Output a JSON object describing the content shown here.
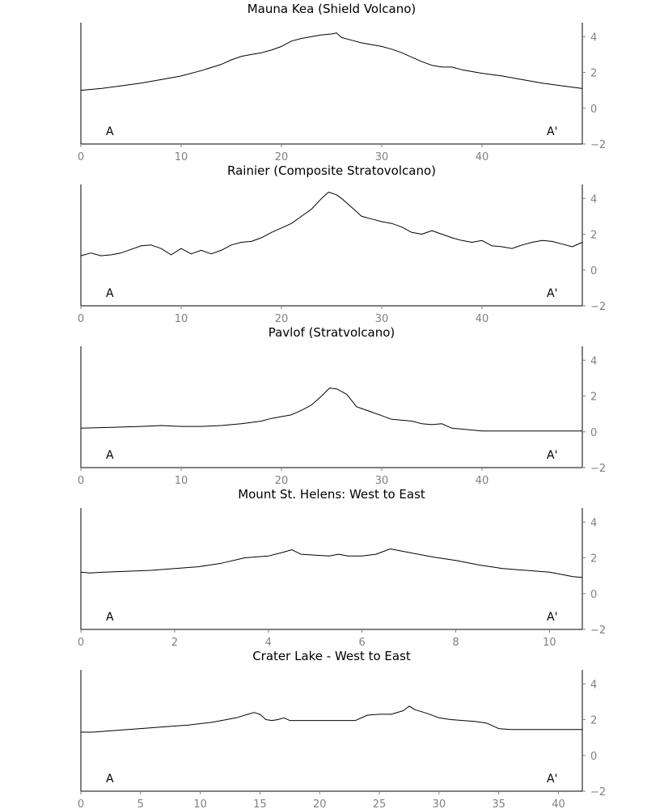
{
  "chart_data": [
    {
      "type": "line",
      "title": "Mauna Kea (Shield Volcano)",
      "label_start": "A",
      "label_end": "A'",
      "xlim": [
        0,
        50
      ],
      "ylim": [
        -2,
        4.6
      ],
      "xticks": [
        0,
        10,
        20,
        30,
        40
      ],
      "yticks": [
        -2,
        0,
        2,
        4
      ],
      "x": [
        0,
        2,
        4,
        6,
        8,
        10,
        12,
        14,
        15,
        16,
        17,
        18,
        19,
        20,
        21,
        22,
        23,
        24,
        25,
        25.5,
        26,
        27,
        28,
        29,
        30,
        31,
        32,
        33,
        34,
        35,
        36,
        37,
        38,
        40,
        42,
        44,
        46,
        48,
        50
      ],
      "y": [
        1.0,
        1.1,
        1.25,
        1.4,
        1.6,
        1.8,
        2.1,
        2.45,
        2.7,
        2.9,
        3.0,
        3.1,
        3.25,
        3.45,
        3.75,
        3.9,
        4.0,
        4.1,
        4.15,
        4.2,
        3.95,
        3.8,
        3.65,
        3.55,
        3.45,
        3.3,
        3.1,
        2.85,
        2.6,
        2.4,
        2.3,
        2.3,
        2.15,
        1.95,
        1.8,
        1.6,
        1.4,
        1.25,
        1.1
      ]
    },
    {
      "type": "line",
      "title": "Rainier (Composite Stratovolcano)",
      "label_start": "A",
      "label_end": "A'",
      "xlim": [
        0,
        50
      ],
      "ylim": [
        -2,
        4.6
      ],
      "xticks": [
        0,
        10,
        20,
        30,
        40
      ],
      "yticks": [
        -2,
        0,
        2,
        4
      ],
      "x": [
        0,
        1,
        2,
        3,
        4,
        5,
        6,
        7,
        8,
        9,
        10,
        11,
        12,
        13,
        14,
        15,
        16,
        17,
        18,
        19,
        20,
        21,
        22,
        23,
        24,
        24.7,
        25.5,
        26,
        27,
        28,
        29,
        30,
        31,
        32,
        33,
        34,
        35,
        36,
        37,
        38,
        39,
        40,
        41,
        42,
        43,
        44,
        45,
        46,
        47,
        48,
        49,
        50
      ],
      "y": [
        0.8,
        0.95,
        0.8,
        0.85,
        0.95,
        1.15,
        1.35,
        1.4,
        1.2,
        0.85,
        1.2,
        0.9,
        1.1,
        0.9,
        1.1,
        1.4,
        1.55,
        1.6,
        1.8,
        2.1,
        2.35,
        2.6,
        3.0,
        3.4,
        4.0,
        4.35,
        4.2,
        4.0,
        3.5,
        3.0,
        2.85,
        2.7,
        2.6,
        2.4,
        2.1,
        2.0,
        2.2,
        2.0,
        1.8,
        1.65,
        1.55,
        1.65,
        1.35,
        1.3,
        1.2,
        1.4,
        1.55,
        1.65,
        1.6,
        1.45,
        1.3,
        1.55
      ]
    },
    {
      "type": "line",
      "title": "Pavlof (Stratvolcano)",
      "label_start": "A",
      "label_end": "A'",
      "xlim": [
        0,
        50
      ],
      "ylim": [
        -2,
        4.6
      ],
      "xticks": [
        0,
        10,
        20,
        30,
        40
      ],
      "yticks": [
        -2,
        0,
        2,
        4
      ],
      "x": [
        0,
        3,
        6,
        8,
        10,
        12,
        14,
        16,
        18,
        19,
        20,
        21,
        22,
        23,
        24,
        24.8,
        25.5,
        26.5,
        27.5,
        28,
        29,
        30,
        31,
        32,
        33,
        34,
        35,
        36,
        37,
        38,
        40,
        42,
        44,
        46,
        48,
        50
      ],
      "y": [
        0.2,
        0.25,
        0.3,
        0.35,
        0.3,
        0.3,
        0.35,
        0.45,
        0.6,
        0.75,
        0.85,
        0.95,
        1.2,
        1.5,
        2.0,
        2.45,
        2.4,
        2.1,
        1.4,
        1.3,
        1.1,
        0.9,
        0.7,
        0.65,
        0.6,
        0.45,
        0.4,
        0.45,
        0.2,
        0.15,
        0.05,
        0.05,
        0.05,
        0.05,
        0.05,
        0.05
      ]
    },
    {
      "type": "line",
      "title": "Mount St. Helens: West to East",
      "label_start": "A",
      "label_end": "A'",
      "xlim": [
        0,
        10.7
      ],
      "ylim": [
        -2,
        4.6
      ],
      "xticks": [
        0,
        2,
        4,
        6,
        8,
        10
      ],
      "yticks": [
        -2,
        0,
        2,
        4
      ],
      "x": [
        0,
        0.2,
        0.5,
        1,
        1.5,
        2,
        2.5,
        3,
        3.5,
        4,
        4.3,
        4.5,
        4.7,
        5,
        5.3,
        5.5,
        5.7,
        6,
        6.3,
        6.6,
        7,
        7.5,
        8,
        8.5,
        9,
        9.5,
        10,
        10.3,
        10.5,
        10.7
      ],
      "y": [
        1.2,
        1.15,
        1.2,
        1.25,
        1.3,
        1.4,
        1.5,
        1.7,
        2.0,
        2.1,
        2.3,
        2.45,
        2.2,
        2.15,
        2.1,
        2.2,
        2.1,
        2.1,
        2.2,
        2.5,
        2.3,
        2.05,
        1.85,
        1.6,
        1.4,
        1.3,
        1.2,
        1.05,
        0.95,
        0.9
      ]
    },
    {
      "type": "line",
      "title": "Crater Lake - West to East",
      "label_start": "A",
      "label_end": "A'",
      "xlim": [
        0,
        42
      ],
      "ylim": [
        -2,
        4.6
      ],
      "xticks": [
        0,
        5,
        10,
        15,
        20,
        25,
        30,
        35,
        40
      ],
      "yticks": [
        -2,
        0,
        2,
        4
      ],
      "x": [
        0,
        1,
        2,
        3,
        5,
        7,
        9,
        11,
        13,
        14,
        14.5,
        15,
        15.5,
        16,
        16.5,
        17,
        17.5,
        18,
        20,
        23,
        24,
        25,
        26,
        27,
        27.5,
        28,
        29,
        30,
        31,
        32,
        33,
        34,
        35,
        36,
        38,
        40,
        42
      ],
      "y": [
        1.3,
        1.3,
        1.35,
        1.4,
        1.5,
        1.6,
        1.7,
        1.85,
        2.1,
        2.3,
        2.4,
        2.3,
        2.0,
        1.95,
        2.0,
        2.1,
        1.95,
        1.95,
        1.95,
        1.95,
        2.25,
        2.3,
        2.3,
        2.5,
        2.75,
        2.55,
        2.35,
        2.1,
        2.0,
        1.95,
        1.9,
        1.8,
        1.5,
        1.45,
        1.45,
        1.45,
        1.45
      ]
    }
  ]
}
